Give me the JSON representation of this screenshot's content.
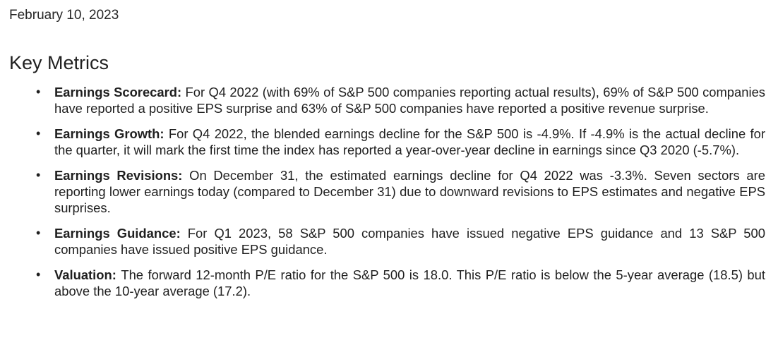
{
  "date": "February 10, 2023",
  "heading": "Key Metrics",
  "bullets": [
    {
      "label": "Earnings Scorecard:",
      "text": "For Q4 2022 (with 69% of S&P 500 companies reporting actual results), 69% of S&P 500 companies have reported a positive EPS surprise and 63% of S&P 500 companies have reported a positive revenue surprise."
    },
    {
      "label": "Earnings Growth:",
      "text": "For Q4 2022, the blended earnings decline for the S&P 500 is -4.9%. If -4.9% is the actual decline for the quarter, it will mark the first time the index has reported a year-over-year decline in earnings since Q3 2020 (-5.7%)."
    },
    {
      "label": "Earnings Revisions:",
      "text": "On December 31, the estimated earnings decline for Q4 2022 was -3.3%. Seven sectors are reporting lower earnings today (compared to December 31) due to downward revisions to EPS estimates and negative EPS surprises."
    },
    {
      "label": "Earnings Guidance:",
      "text": "For Q1 2023, 58 S&P 500 companies have issued negative EPS guidance and 13 S&P 500 companies have issued positive EPS guidance."
    },
    {
      "label": "Valuation:",
      "text": "The forward 12-month P/E ratio for the S&P 500 is 18.0. This P/E ratio is below the 5-year average (18.5) but above the 10-year average (17.2)."
    }
  ],
  "bullet_glyph": "•"
}
